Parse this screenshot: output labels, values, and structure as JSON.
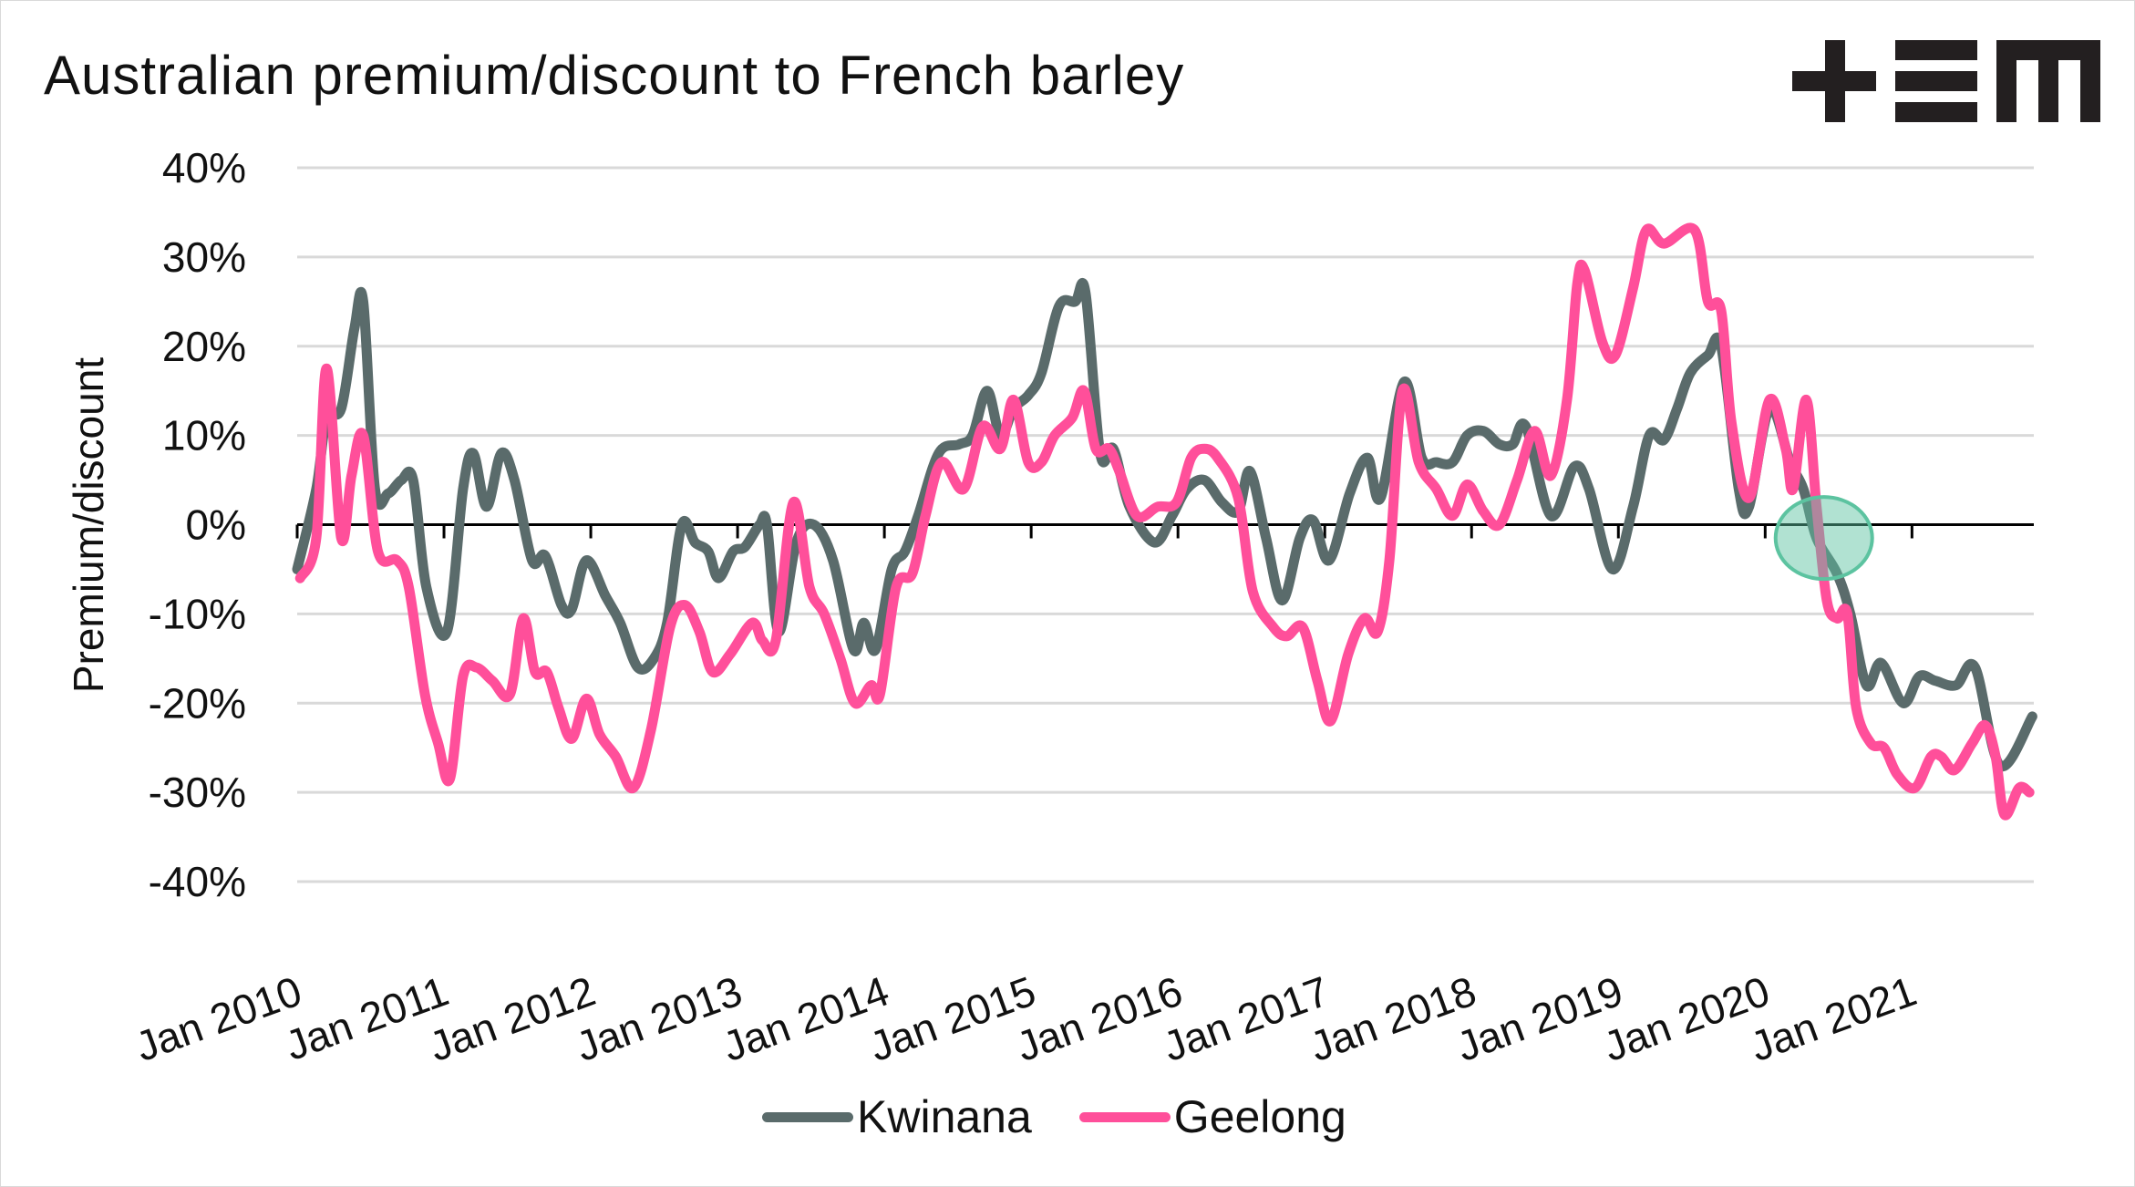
{
  "chart_data": {
    "type": "line",
    "title": "Australian premium/discount to French barley",
    "xlabel": "",
    "ylabel": "Premium/discount",
    "ylim": [
      -40,
      40
    ],
    "yticks": [
      "40%",
      "30%",
      "20%",
      "10%",
      "0%",
      "-10%",
      "-20%",
      "-30%",
      "-40%"
    ],
    "ytick_values": [
      40,
      30,
      20,
      10,
      0,
      -10,
      -20,
      -30,
      -40
    ],
    "xlim": [
      2010,
      2021.83
    ],
    "xticks": [
      "Jan 2010",
      "Jan 2011",
      "Jan 2012",
      "Jan 2013",
      "Jan 2014",
      "Jan 2015",
      "Jan 2016",
      "Jan 2017",
      "Jan 2018",
      "Jan 2019",
      "Jan 2020",
      "Jan 2021"
    ],
    "xtick_values": [
      2010,
      2011,
      2012,
      2013,
      2014,
      2015,
      2016,
      2017,
      2018,
      2019,
      2020,
      2021
    ],
    "grid": true,
    "legend_position": "bottom",
    "annotation": {
      "type": "ellipse",
      "x": 2020.4,
      "y": -1.5,
      "color": "#5cc3a0"
    },
    "series": [
      {
        "name": "Kwinana",
        "color": "#5a6b6b",
        "points": [
          [
            2010.0,
            -5
          ],
          [
            2010.13,
            4
          ],
          [
            2010.2,
            12
          ],
          [
            2010.3,
            13
          ],
          [
            2010.39,
            22
          ],
          [
            2010.45,
            25
          ],
          [
            2010.53,
            4
          ],
          [
            2010.62,
            3.5
          ],
          [
            2010.71,
            5
          ],
          [
            2010.79,
            5
          ],
          [
            2010.88,
            -7
          ],
          [
            2011.02,
            -12
          ],
          [
            2011.13,
            4
          ],
          [
            2011.2,
            8
          ],
          [
            2011.29,
            2
          ],
          [
            2011.39,
            8
          ],
          [
            2011.48,
            5
          ],
          [
            2011.6,
            -4
          ],
          [
            2011.69,
            -3.5
          ],
          [
            2011.8,
            -9
          ],
          [
            2011.87,
            -9.5
          ],
          [
            2011.97,
            -4
          ],
          [
            2012.1,
            -8
          ],
          [
            2012.2,
            -11
          ],
          [
            2012.32,
            -16
          ],
          [
            2012.43,
            -15
          ],
          [
            2012.52,
            -11
          ],
          [
            2012.62,
            0
          ],
          [
            2012.71,
            -2
          ],
          [
            2012.8,
            -3
          ],
          [
            2012.87,
            -6
          ],
          [
            2012.97,
            -3
          ],
          [
            2013.05,
            -2.5
          ],
          [
            2013.15,
            0
          ],
          [
            2013.2,
            0
          ],
          [
            2013.28,
            -12
          ],
          [
            2013.4,
            -2
          ],
          [
            2013.52,
            0
          ],
          [
            2013.65,
            -4
          ],
          [
            2013.79,
            -14
          ],
          [
            2013.86,
            -11
          ],
          [
            2013.94,
            -14
          ],
          [
            2014.05,
            -5
          ],
          [
            2014.14,
            -3
          ],
          [
            2014.23,
            1
          ],
          [
            2014.37,
            8
          ],
          [
            2014.51,
            9
          ],
          [
            2014.6,
            10
          ],
          [
            2014.7,
            15
          ],
          [
            2014.79,
            10
          ],
          [
            2014.88,
            13
          ],
          [
            2014.98,
            14.5
          ],
          [
            2015.07,
            17
          ],
          [
            2015.19,
            24.5
          ],
          [
            2015.3,
            25
          ],
          [
            2015.37,
            26
          ],
          [
            2015.47,
            8
          ],
          [
            2015.56,
            8.5
          ],
          [
            2015.67,
            2
          ],
          [
            2015.84,
            -2
          ],
          [
            2015.96,
            1
          ],
          [
            2016.06,
            4
          ],
          [
            2016.18,
            5
          ],
          [
            2016.3,
            2.5
          ],
          [
            2016.41,
            1.5
          ],
          [
            2016.49,
            6
          ],
          [
            2016.6,
            -1.5
          ],
          [
            2016.71,
            -8.5
          ],
          [
            2016.83,
            -1.5
          ],
          [
            2016.92,
            0.5
          ],
          [
            2017.03,
            -4
          ],
          [
            2017.17,
            3.5
          ],
          [
            2017.29,
            7.5
          ],
          [
            2017.38,
            3
          ],
          [
            2017.54,
            16
          ],
          [
            2017.66,
            7.5
          ],
          [
            2017.76,
            7
          ],
          [
            2017.87,
            7
          ],
          [
            2017.97,
            10
          ],
          [
            2018.08,
            10.5
          ],
          [
            2018.19,
            9
          ],
          [
            2018.28,
            9
          ],
          [
            2018.37,
            11
          ],
          [
            2018.54,
            1
          ],
          [
            2018.7,
            6.5
          ],
          [
            2018.8,
            4
          ],
          [
            2018.96,
            -5
          ],
          [
            2019.1,
            2
          ],
          [
            2019.21,
            10
          ],
          [
            2019.31,
            9.5
          ],
          [
            2019.4,
            13
          ],
          [
            2019.49,
            17
          ],
          [
            2019.61,
            19
          ],
          [
            2019.7,
            20
          ],
          [
            2019.82,
            4
          ],
          [
            2019.89,
            2
          ],
          [
            2020.03,
            13
          ],
          [
            2020.17,
            7
          ],
          [
            2020.26,
            4
          ],
          [
            2020.35,
            -1.5
          ],
          [
            2020.49,
            -5.5
          ],
          [
            2020.58,
            -10
          ],
          [
            2020.69,
            -18
          ],
          [
            2020.79,
            -15.5
          ],
          [
            2020.94,
            -20
          ],
          [
            2021.05,
            -17
          ],
          [
            2021.16,
            -17.5
          ],
          [
            2021.3,
            -18
          ],
          [
            2021.43,
            -16
          ],
          [
            2021.6,
            -27
          ],
          [
            2021.82,
            -21.5
          ]
        ]
      },
      {
        "name": "Geelong",
        "color": "#ff4f9a",
        "points": [
          [
            2010.02,
            -6
          ],
          [
            2010.13,
            -1.5
          ],
          [
            2010.2,
            17.5
          ],
          [
            2010.3,
            -1.5
          ],
          [
            2010.37,
            5.5
          ],
          [
            2010.45,
            10
          ],
          [
            2010.55,
            -3
          ],
          [
            2010.68,
            -4
          ],
          [
            2010.76,
            -7
          ],
          [
            2010.87,
            -19
          ],
          [
            2010.96,
            -24.5
          ],
          [
            2011.04,
            -28.5
          ],
          [
            2011.13,
            -17
          ],
          [
            2011.22,
            -16
          ],
          [
            2011.33,
            -17.5
          ],
          [
            2011.45,
            -19
          ],
          [
            2011.54,
            -10.5
          ],
          [
            2011.62,
            -16.5
          ],
          [
            2011.7,
            -16.5
          ],
          [
            2011.78,
            -20.5
          ],
          [
            2011.87,
            -24
          ],
          [
            2011.97,
            -19.5
          ],
          [
            2012.06,
            -23.5
          ],
          [
            2012.17,
            -26
          ],
          [
            2012.29,
            -29.5
          ],
          [
            2012.41,
            -23
          ],
          [
            2012.54,
            -11.5
          ],
          [
            2012.64,
            -9
          ],
          [
            2012.74,
            -12
          ],
          [
            2012.83,
            -16.5
          ],
          [
            2012.95,
            -14.5
          ],
          [
            2013.1,
            -11
          ],
          [
            2013.17,
            -13
          ],
          [
            2013.26,
            -13
          ],
          [
            2013.38,
            2.5
          ],
          [
            2013.49,
            -7
          ],
          [
            2013.59,
            -10
          ],
          [
            2013.7,
            -15
          ],
          [
            2013.8,
            -20
          ],
          [
            2013.91,
            -18
          ],
          [
            2013.97,
            -19
          ],
          [
            2014.08,
            -7
          ],
          [
            2014.19,
            -5.5
          ],
          [
            2014.28,
            1
          ],
          [
            2014.39,
            7
          ],
          [
            2014.54,
            4
          ],
          [
            2014.67,
            11
          ],
          [
            2014.79,
            8.5
          ],
          [
            2014.88,
            14
          ],
          [
            2014.98,
            7
          ],
          [
            2015.07,
            7
          ],
          [
            2015.16,
            10
          ],
          [
            2015.28,
            12
          ],
          [
            2015.36,
            15
          ],
          [
            2015.44,
            8.5
          ],
          [
            2015.53,
            8.5
          ],
          [
            2015.6,
            6
          ],
          [
            2015.72,
            1
          ],
          [
            2015.86,
            2
          ],
          [
            2015.99,
            2.5
          ],
          [
            2016.09,
            7.5
          ],
          [
            2016.18,
            8.5
          ],
          [
            2016.27,
            7.5
          ],
          [
            2016.41,
            3
          ],
          [
            2016.51,
            -7.5
          ],
          [
            2016.65,
            -11.5
          ],
          [
            2016.74,
            -12.5
          ],
          [
            2016.85,
            -11.5
          ],
          [
            2016.95,
            -17.5
          ],
          [
            2017.04,
            -22
          ],
          [
            2017.16,
            -14.5
          ],
          [
            2017.27,
            -10.5
          ],
          [
            2017.36,
            -12
          ],
          [
            2017.44,
            -4
          ],
          [
            2017.53,
            15
          ],
          [
            2017.64,
            7
          ],
          [
            2017.76,
            4
          ],
          [
            2017.87,
            1
          ],
          [
            2017.97,
            4.5
          ],
          [
            2018.08,
            1.5
          ],
          [
            2018.19,
            0
          ],
          [
            2018.31,
            5
          ],
          [
            2018.43,
            10.5
          ],
          [
            2018.54,
            5.5
          ],
          [
            2018.65,
            14
          ],
          [
            2018.72,
            27
          ],
          [
            2018.77,
            28.5
          ],
          [
            2018.89,
            20.5
          ],
          [
            2018.98,
            19
          ],
          [
            2019.1,
            26.5
          ],
          [
            2019.19,
            33
          ],
          [
            2019.31,
            31.5
          ],
          [
            2019.52,
            33
          ],
          [
            2019.61,
            25
          ],
          [
            2019.7,
            24
          ],
          [
            2019.77,
            11.5
          ],
          [
            2019.89,
            3
          ],
          [
            2020.03,
            14
          ],
          [
            2020.14,
            8.5
          ],
          [
            2020.19,
            4
          ],
          [
            2020.28,
            14
          ],
          [
            2020.35,
            2
          ],
          [
            2020.42,
            -8.5
          ],
          [
            2020.49,
            -10.5
          ],
          [
            2020.56,
            -10
          ],
          [
            2020.62,
            -20.5
          ],
          [
            2020.72,
            -24.5
          ],
          [
            2020.81,
            -25
          ],
          [
            2020.9,
            -28
          ],
          [
            2021.02,
            -29.5
          ],
          [
            2021.13,
            -26
          ],
          [
            2021.2,
            -26
          ],
          [
            2021.29,
            -27.5
          ],
          [
            2021.41,
            -24.5
          ],
          [
            2021.5,
            -22.5
          ],
          [
            2021.57,
            -26
          ],
          [
            2021.63,
            -32.5
          ],
          [
            2021.73,
            -29.5
          ],
          [
            2021.8,
            -30
          ]
        ]
      }
    ]
  },
  "logo": {
    "text": "+EM"
  }
}
